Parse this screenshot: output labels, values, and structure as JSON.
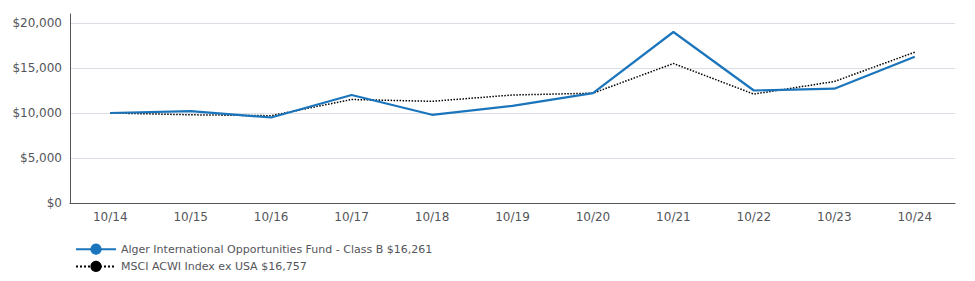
{
  "chart_data": {
    "type": "line",
    "categories": [
      "10/14",
      "10/15",
      "10/16",
      "10/17",
      "10/18",
      "10/19",
      "10/20",
      "10/21",
      "10/22",
      "10/23",
      "10/24"
    ],
    "series": [
      {
        "name": "Alger International Opportunities Fund - Class B $16,261",
        "color": "#1b75bc",
        "line_style": "solid",
        "values": [
          10000,
          10200,
          9500,
          12000,
          9800,
          10800,
          12200,
          19000,
          12500,
          12700,
          16261
        ]
      },
      {
        "name": "MSCI ACWI Index ex USA $16,757",
        "color": "#000000",
        "line_style": "dotted",
        "values": [
          10000,
          9800,
          9700,
          11500,
          11300,
          12000,
          12200,
          15500,
          12100,
          13500,
          16757
        ]
      }
    ],
    "ylim": [
      0,
      21000
    ],
    "yticks": [
      {
        "value": 0,
        "label": "$0"
      },
      {
        "value": 5000,
        "label": "$5,000"
      },
      {
        "value": 10000,
        "label": "$10,000"
      },
      {
        "value": 15000,
        "label": "$15,000"
      },
      {
        "value": 20000,
        "label": "$20,000"
      }
    ],
    "grid": true,
    "legend": "lower left"
  }
}
